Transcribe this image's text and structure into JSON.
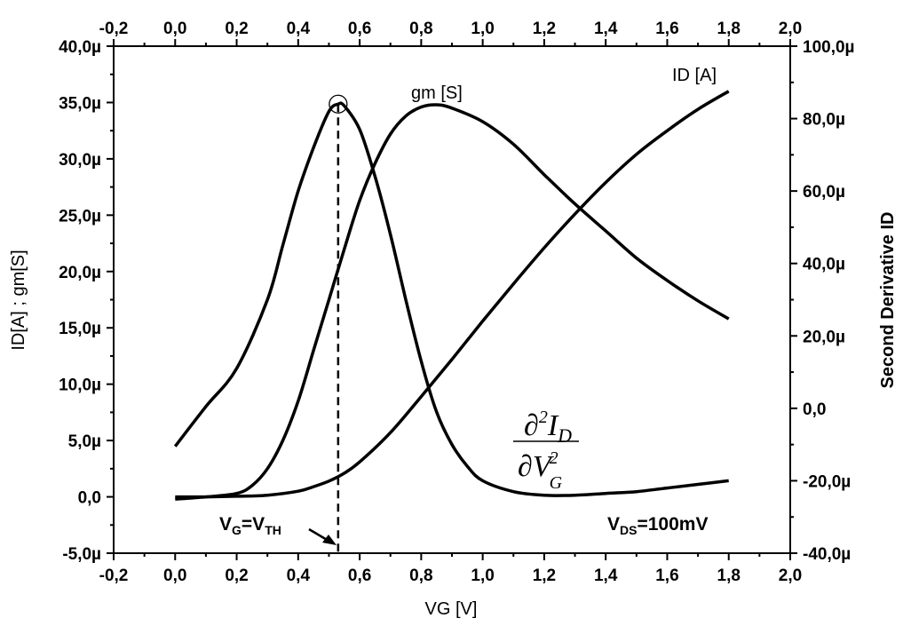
{
  "chart_data": {
    "type": "line",
    "xlabel": "VG [V]",
    "ylabel_left": "ID[A] ; gm[S]",
    "ylabel_right": "Second Derivative ID",
    "xlim": [
      -0.2,
      2.0
    ],
    "ylim_left": [
      -5.0,
      40.0
    ],
    "ylim_right": [
      -40.0,
      100.0
    ],
    "x_ticks": [
      "-0,2",
      "0,0",
      "0,2",
      "0,4",
      "0,6",
      "0,8",
      "1,0",
      "1,2",
      "1,4",
      "1,6",
      "1,8",
      "2,0"
    ],
    "x_tick_values": [
      -0.2,
      0.0,
      0.2,
      0.4,
      0.6,
      0.8,
      1.0,
      1.2,
      1.4,
      1.6,
      1.8,
      2.0
    ],
    "y_left_ticks": [
      "-5,0µ",
      "0,0",
      "5,0µ",
      "10,0µ",
      "15,0µ",
      "20,0µ",
      "25,0µ",
      "30,0µ",
      "35,0µ",
      "40,0µ"
    ],
    "y_left_tick_values": [
      -5,
      0,
      5,
      10,
      15,
      20,
      25,
      30,
      35,
      40
    ],
    "y_right_ticks": [
      "-40,0µ",
      "-20,0µ",
      "0,0",
      "20,0µ",
      "40,0µ",
      "60,0µ",
      "80,0µ",
      "100,0µ"
    ],
    "y_right_tick_values": [
      -40,
      -20,
      0,
      20,
      40,
      60,
      80,
      100
    ],
    "series": [
      {
        "name": "ID [A]",
        "axis": "left",
        "x": [
          0.0,
          0.1,
          0.2,
          0.3,
          0.4,
          0.45,
          0.5,
          0.55,
          0.6,
          0.7,
          0.8,
          0.9,
          1.0,
          1.1,
          1.2,
          1.3,
          1.4,
          1.5,
          1.6,
          1.7,
          1.8
        ],
        "values": [
          0.0,
          0.0,
          0.05,
          0.15,
          0.5,
          0.9,
          1.4,
          2.1,
          3.1,
          5.7,
          8.9,
          12.2,
          15.6,
          18.9,
          22.1,
          25.1,
          27.9,
          30.4,
          32.5,
          34.4,
          36.0
        ]
      },
      {
        "name": "gm [S]",
        "axis": "left",
        "x": [
          0.0,
          0.1,
          0.2,
          0.25,
          0.3,
          0.35,
          0.4,
          0.45,
          0.5,
          0.55,
          0.6,
          0.65,
          0.7,
          0.75,
          0.8,
          0.85,
          0.9,
          1.0,
          1.1,
          1.2,
          1.3,
          1.4,
          1.5,
          1.6,
          1.7,
          1.8
        ],
        "values": [
          -0.2,
          0.0,
          0.3,
          1.0,
          2.5,
          5.0,
          8.5,
          13.0,
          17.5,
          22.0,
          26.3,
          29.6,
          32.2,
          33.8,
          34.6,
          34.8,
          34.5,
          33.3,
          31.3,
          28.6,
          26.0,
          23.6,
          21.2,
          19.2,
          17.4,
          15.8
        ]
      },
      {
        "name": "Second Derivative ID",
        "axis": "right",
        "x": [
          0.0,
          0.1,
          0.2,
          0.3,
          0.35,
          0.4,
          0.45,
          0.5,
          0.53,
          0.55,
          0.6,
          0.65,
          0.7,
          0.75,
          0.8,
          0.85,
          0.9,
          0.95,
          1.0,
          1.1,
          1.2,
          1.3,
          1.4,
          1.5,
          1.6,
          1.7,
          1.8
        ],
        "values": [
          -10.5,
          0.5,
          11.0,
          30.0,
          45.0,
          60.0,
          72.0,
          82.0,
          84.0,
          83.5,
          77.0,
          64.0,
          48.0,
          30.0,
          13.0,
          -1.0,
          -10.0,
          -16.0,
          -20.0,
          -23.0,
          -24.0,
          -24.0,
          -23.5,
          -23.0,
          -22.0,
          -21.0,
          -20.0
        ]
      }
    ],
    "threshold_vg": 0.53,
    "grid": false
  },
  "annotations": {
    "id_label": "ID [A]",
    "gm_label": "gm [S]",
    "vds": {
      "main": "V",
      "sub": "DS",
      "rest": "=100mV"
    },
    "vg_vth": {
      "v1": "V",
      "sub1": "G",
      "eq": "=V",
      "sub2": "TH"
    },
    "formula": {
      "num_d": "∂",
      "num_exp": "2",
      "num_I": "I",
      "num_sub": "D",
      "den_d": "∂",
      "den_V": "V",
      "den_exp": "2",
      "den_sub": "G"
    }
  }
}
